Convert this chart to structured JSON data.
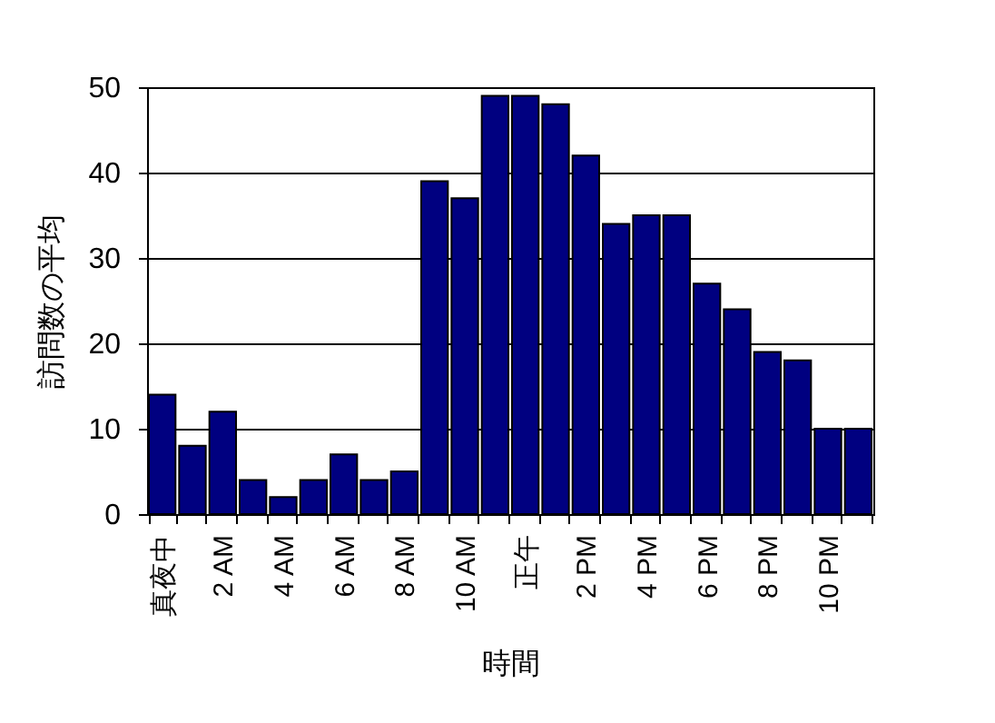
{
  "chart_data": {
    "type": "bar",
    "xlabel": "時間",
    "ylabel": "訪問数の平均",
    "categories": [
      "真夜中",
      null,
      "2 AM",
      null,
      "4 AM",
      null,
      "6 AM",
      null,
      "8 AM",
      null,
      "10 AM",
      null,
      "正午",
      null,
      "2 PM",
      null,
      "4 PM",
      null,
      "6 PM",
      null,
      "8 PM",
      null,
      "10 PM",
      null
    ],
    "values": [
      14,
      8,
      12,
      4,
      2,
      4,
      7,
      4,
      5,
      39,
      37,
      49,
      49,
      48,
      42,
      34,
      35,
      35,
      27,
      24,
      19,
      18,
      10,
      10
    ],
    "color": "#000080",
    "ylim": [
      0,
      50
    ],
    "yticks": [
      0,
      10,
      20,
      30,
      40,
      50
    ],
    "grid": "y"
  }
}
